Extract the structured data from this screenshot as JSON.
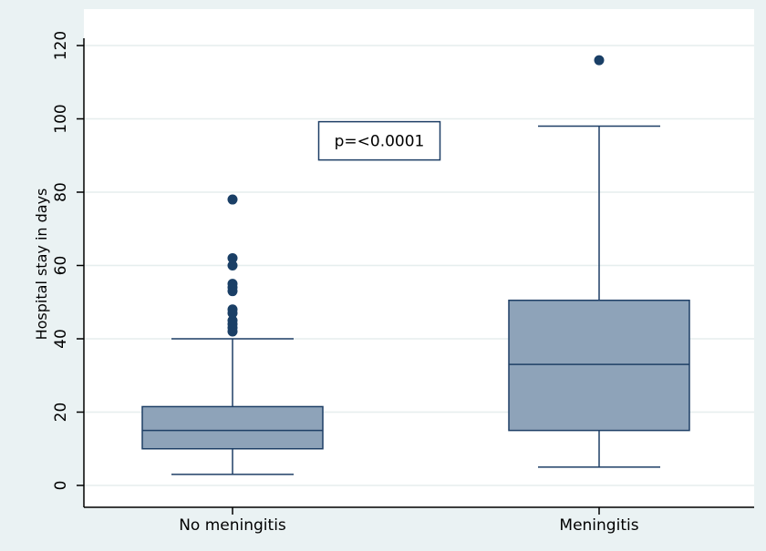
{
  "chart_data": {
    "type": "box",
    "ylabel": "Hospital stay in days",
    "xlabel": "",
    "ylim": [
      0,
      120
    ],
    "y_ticks": [
      0,
      20,
      40,
      60,
      80,
      100,
      120
    ],
    "grid": true,
    "categories": [
      "No meningitis",
      "Meningitis"
    ],
    "boxes": [
      {
        "category": "No meningitis",
        "whisker_low": 3,
        "q1": 10,
        "median": 15,
        "q3": 21.5,
        "whisker_high": 40,
        "outliers": [
          42,
          43,
          44,
          45,
          47,
          48,
          53,
          54,
          55,
          60,
          62,
          78
        ]
      },
      {
        "category": "Meningitis",
        "whisker_low": 5,
        "q1": 15,
        "median": 33,
        "q3": 50.5,
        "whisker_high": 98,
        "outliers": [
          116
        ]
      }
    ],
    "annotations": [
      {
        "text": "p=<0.0001",
        "x_position": "between categories",
        "y": 95
      }
    ],
    "colors": {
      "background": "#eaf2f3",
      "plot_background": "#ffffff",
      "box_fill": "#8ea3b9",
      "box_stroke": "#1e3f66",
      "outlier": "#1a3f66",
      "grid": "#e6eeee"
    }
  }
}
